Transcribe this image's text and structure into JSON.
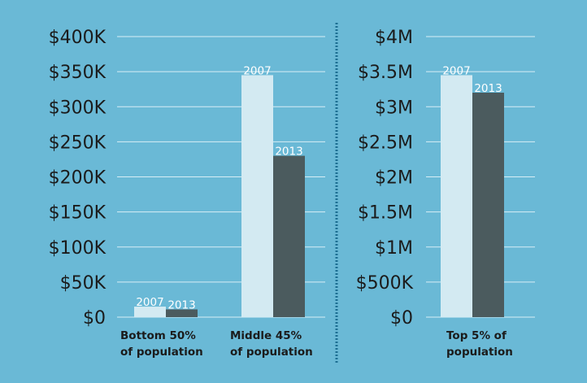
{
  "chart_data": [
    {
      "type": "bar",
      "ylim": [
        0,
        400000
      ],
      "yticks": [
        0,
        50000,
        100000,
        150000,
        200000,
        250000,
        300000,
        350000,
        400000
      ],
      "ytick_labels": [
        "$0",
        "$50K",
        "$100K",
        "$150K",
        "$200K",
        "$250K",
        "$300K",
        "$350K",
        "$400K"
      ],
      "grid": true,
      "categories": [
        [
          "Bottom 50%",
          "of population"
        ],
        [
          "Middle 45%",
          "of population"
        ]
      ],
      "series": [
        {
          "name": "2007",
          "values": [
            15000,
            345000
          ],
          "color": "#d3eaf2"
        },
        {
          "name": "2013",
          "values": [
            11000,
            230000
          ],
          "color": "#4b5b5e"
        }
      ]
    },
    {
      "type": "bar",
      "ylim": [
        0,
        4000000
      ],
      "yticks": [
        0,
        500000,
        1000000,
        1500000,
        2000000,
        2500000,
        3000000,
        3500000,
        4000000
      ],
      "ytick_labels": [
        "$0",
        "$500K",
        "$1M",
        "$1.5M",
        "$2M",
        "$2.5M",
        "$3M",
        "$3.5M",
        "$4M"
      ],
      "grid": true,
      "categories": [
        [
          "Top 5% of",
          "population"
        ]
      ],
      "series": [
        {
          "name": "2007",
          "values": [
            3450000
          ],
          "color": "#d3eaf2"
        },
        {
          "name": "2013",
          "values": [
            3200000
          ],
          "color": "#4b5b5e"
        }
      ]
    }
  ],
  "colors": {
    "background": "#6ab9d6",
    "gridline": "#d8eef6",
    "divider": "#1d6f93",
    "text": "#1b1b1b",
    "bar_label": "#ffffff"
  }
}
